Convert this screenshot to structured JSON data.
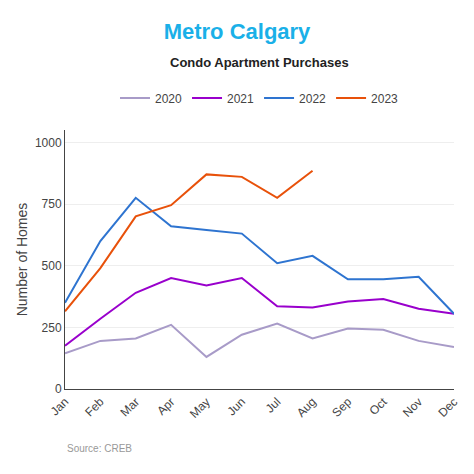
{
  "chart_data": {
    "type": "line",
    "title": "Metro Calgary",
    "subtitle": "Condo Apartment Purchases",
    "ylabel": "Number of Homes",
    "source": "Source: CREB",
    "categories": [
      "Jan",
      "Feb",
      "Mar",
      "Apr",
      "May",
      "Jun",
      "Jul",
      "Aug",
      "Sep",
      "Oct",
      "Nov",
      "Dec"
    ],
    "series": [
      {
        "name": "2020",
        "color": "#a89bc8",
        "values": [
          145,
          195,
          205,
          260,
          130,
          220,
          265,
          205,
          245,
          240,
          195,
          170
        ]
      },
      {
        "name": "2021",
        "color": "#9900cc",
        "values": [
          175,
          285,
          390,
          450,
          420,
          450,
          335,
          330,
          355,
          365,
          325,
          305
        ]
      },
      {
        "name": "2022",
        "color": "#2e74d0",
        "values": [
          350,
          600,
          775,
          660,
          645,
          630,
          510,
          540,
          445,
          445,
          455,
          305
        ]
      },
      {
        "name": "2023",
        "color": "#e8510a",
        "values": [
          315,
          490,
          700,
          745,
          870,
          860,
          775,
          885,
          null,
          null,
          null,
          null
        ]
      }
    ],
    "ylim": [
      0,
      1050
    ],
    "yticks": [
      0,
      250,
      500,
      750,
      1000
    ],
    "grid": true,
    "legend": "top"
  }
}
